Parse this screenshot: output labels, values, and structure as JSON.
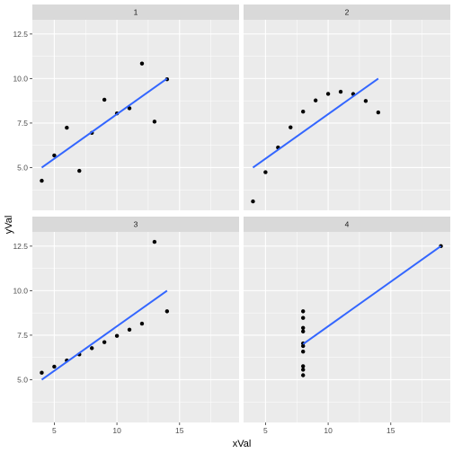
{
  "chart_data": {
    "type": "scatter",
    "xlabel": "xVal",
    "ylabel": "yVal",
    "xlim": [
      3.25,
      19.75
    ],
    "ylim": [
      2.6,
      13.3
    ],
    "x_ticks": [
      5,
      10,
      15
    ],
    "y_ticks": [
      5.0,
      7.5,
      10.0,
      12.5
    ],
    "x_tick_labels": [
      "5",
      "10",
      "15"
    ],
    "y_tick_labels": [
      "5.0",
      "7.5",
      "10.0",
      "12.5"
    ],
    "grid": true,
    "point_color": "#000000",
    "line_color": "#3366FF",
    "strip_color": "#D9D9D9",
    "panel_color": "#EBEBEB",
    "panels": [
      {
        "label": "1",
        "points": {
          "x": [
            10,
            8,
            13,
            9,
            11,
            14,
            6,
            4,
            12,
            7,
            5
          ],
          "y": [
            8.04,
            6.95,
            7.58,
            8.81,
            8.33,
            9.96,
            7.24,
            4.26,
            10.84,
            4.82,
            5.68
          ]
        },
        "fit_line": {
          "x": [
            4,
            14
          ],
          "y": [
            5.0,
            10.0
          ]
        }
      },
      {
        "label": "2",
        "points": {
          "x": [
            10,
            8,
            13,
            9,
            11,
            14,
            6,
            4,
            12,
            7,
            5
          ],
          "y": [
            9.14,
            8.14,
            8.74,
            8.77,
            9.26,
            8.1,
            6.13,
            3.1,
            9.13,
            7.26,
            4.74
          ]
        },
        "fit_line": {
          "x": [
            4,
            14
          ],
          "y": [
            5.0,
            10.0
          ]
        }
      },
      {
        "label": "3",
        "points": {
          "x": [
            10,
            8,
            13,
            9,
            11,
            14,
            6,
            4,
            12,
            7,
            5
          ],
          "y": [
            7.46,
            6.77,
            12.74,
            7.11,
            7.81,
            8.84,
            6.08,
            5.39,
            8.15,
            6.42,
            5.73
          ]
        },
        "fit_line": {
          "x": [
            4,
            14
          ],
          "y": [
            5.0,
            10.0
          ]
        }
      },
      {
        "label": "4",
        "points": {
          "x": [
            8,
            8,
            8,
            8,
            8,
            8,
            8,
            19,
            8,
            8,
            8
          ],
          "y": [
            6.58,
            5.76,
            7.71,
            8.84,
            8.47,
            7.04,
            5.25,
            12.5,
            5.56,
            7.91,
            6.89
          ]
        },
        "fit_line": {
          "x": [
            8,
            19
          ],
          "y": [
            7.0,
            12.5
          ]
        }
      }
    ]
  }
}
